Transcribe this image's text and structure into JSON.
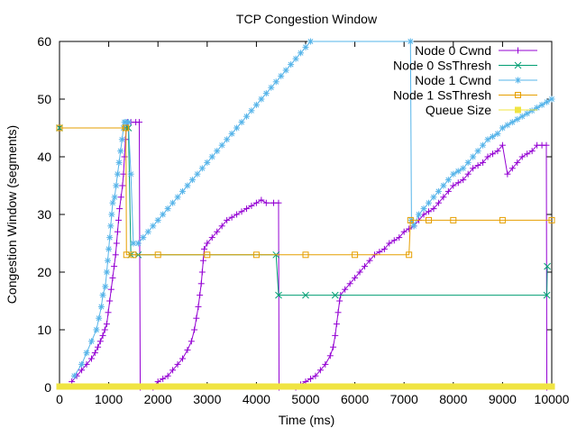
{
  "chart_data": {
    "type": "line",
    "title": "TCP Congestion Window",
    "xlabel": "Time (ms)",
    "ylabel": "Congestion Window (segments)",
    "xlim": [
      0,
      10000
    ],
    "ylim": [
      0,
      60
    ],
    "xticks": [
      0,
      1000,
      2000,
      3000,
      4000,
      5000,
      6000,
      7000,
      8000,
      9000,
      10000
    ],
    "yticks": [
      0,
      10,
      20,
      30,
      40,
      50,
      60
    ],
    "grid": false,
    "legend_position": "top-right",
    "series": [
      {
        "name": "Node 0 Cwnd",
        "color": "#9400d3",
        "marker": "plus",
        "points": [
          [
            250,
            1
          ],
          [
            350,
            2
          ],
          [
            450,
            3
          ],
          [
            550,
            4
          ],
          [
            650,
            5
          ],
          [
            720,
            6
          ],
          [
            780,
            7
          ],
          [
            830,
            8
          ],
          [
            880,
            9
          ],
          [
            920,
            10
          ],
          [
            960,
            11
          ],
          [
            990,
            13
          ],
          [
            1020,
            15
          ],
          [
            1050,
            17
          ],
          [
            1080,
            19
          ],
          [
            1110,
            21
          ],
          [
            1140,
            23
          ],
          [
            1160,
            25
          ],
          [
            1180,
            27
          ],
          [
            1200,
            29
          ],
          [
            1220,
            31
          ],
          [
            1250,
            33
          ],
          [
            1280,
            35
          ],
          [
            1300,
            37
          ],
          [
            1320,
            40
          ],
          [
            1340,
            43
          ],
          [
            1360,
            45
          ],
          [
            1380,
            46
          ],
          [
            1450,
            46
          ],
          [
            1550,
            46
          ],
          [
            1620,
            46
          ],
          [
            1640,
            0
          ],
          [
            1900,
            0
          ],
          [
            2000,
            1
          ],
          [
            2100,
            1.5
          ],
          [
            2200,
            2
          ],
          [
            2300,
            3
          ],
          [
            2400,
            4
          ],
          [
            2500,
            5
          ],
          [
            2600,
            6.5
          ],
          [
            2680,
            8
          ],
          [
            2740,
            10
          ],
          [
            2780,
            12
          ],
          [
            2820,
            14
          ],
          [
            2850,
            16
          ],
          [
            2880,
            18
          ],
          [
            2900,
            20
          ],
          [
            2920,
            22
          ],
          [
            2940,
            24
          ],
          [
            3000,
            25
          ],
          [
            3100,
            26
          ],
          [
            3200,
            27
          ],
          [
            3300,
            28
          ],
          [
            3400,
            29
          ],
          [
            3500,
            29.5
          ],
          [
            3600,
            30
          ],
          [
            3700,
            30.5
          ],
          [
            3800,
            31
          ],
          [
            3900,
            31.5
          ],
          [
            4000,
            32
          ],
          [
            4100,
            32.5
          ],
          [
            4200,
            32
          ],
          [
            4350,
            32
          ],
          [
            4450,
            32
          ],
          [
            4460,
            0
          ],
          [
            4800,
            0
          ],
          [
            4900,
            0.5
          ],
          [
            5000,
            1
          ],
          [
            5100,
            1.5
          ],
          [
            5200,
            2
          ],
          [
            5300,
            3
          ],
          [
            5400,
            4
          ],
          [
            5500,
            5.5
          ],
          [
            5560,
            7
          ],
          [
            5600,
            9
          ],
          [
            5630,
            11
          ],
          [
            5660,
            13
          ],
          [
            5690,
            15
          ],
          [
            5710,
            16
          ],
          [
            5800,
            17
          ],
          [
            5900,
            18
          ],
          [
            6000,
            19
          ],
          [
            6100,
            20
          ],
          [
            6200,
            21
          ],
          [
            6300,
            22
          ],
          [
            6400,
            23
          ],
          [
            6500,
            23.5
          ],
          [
            6600,
            24
          ],
          [
            6700,
            25
          ],
          [
            6800,
            25.5
          ],
          [
            6900,
            26
          ],
          [
            7000,
            27
          ],
          [
            7100,
            27.5
          ],
          [
            7200,
            28
          ],
          [
            7300,
            29
          ],
          [
            7400,
            30
          ],
          [
            7500,
            30.5
          ],
          [
            7600,
            31
          ],
          [
            7700,
            32
          ],
          [
            7800,
            33
          ],
          [
            7900,
            34
          ],
          [
            8000,
            35
          ],
          [
            8100,
            35.5
          ],
          [
            8200,
            36
          ],
          [
            8300,
            37
          ],
          [
            8400,
            38
          ],
          [
            8500,
            38.5
          ],
          [
            8600,
            39
          ],
          [
            8700,
            40
          ],
          [
            8800,
            40.5
          ],
          [
            8900,
            41
          ],
          [
            9000,
            42
          ],
          [
            9100,
            37
          ],
          [
            9200,
            38
          ],
          [
            9300,
            39
          ],
          [
            9400,
            40
          ],
          [
            9500,
            40.5
          ],
          [
            9600,
            41
          ],
          [
            9700,
            42
          ],
          [
            9800,
            42
          ],
          [
            9890,
            42
          ],
          [
            9900,
            0
          ]
        ]
      },
      {
        "name": "Node 0 SsThresh",
        "color": "#009e73",
        "marker": "x",
        "points": [
          [
            0,
            45
          ],
          [
            1350,
            45
          ],
          [
            1400,
            45
          ],
          [
            1450,
            23
          ],
          [
            1600,
            23
          ],
          [
            4400,
            23
          ],
          [
            4450,
            16
          ],
          [
            5000,
            16
          ],
          [
            5600,
            16
          ],
          [
            9900,
            16
          ],
          [
            9910,
            21
          ]
        ]
      },
      {
        "name": "Node 1 Cwnd",
        "color": "#56b4e9",
        "marker": "star",
        "points": [
          [
            300,
            2
          ],
          [
            450,
            4
          ],
          [
            550,
            6
          ],
          [
            650,
            8
          ],
          [
            750,
            10
          ],
          [
            800,
            12
          ],
          [
            850,
            14
          ],
          [
            880,
            16
          ],
          [
            930,
            17.5
          ],
          [
            960,
            20
          ],
          [
            980,
            22
          ],
          [
            1000,
            24
          ],
          [
            1020,
            26
          ],
          [
            1040,
            28
          ],
          [
            1060,
            30
          ],
          [
            1080,
            32
          ],
          [
            1120,
            33
          ],
          [
            1150,
            35
          ],
          [
            1180,
            37
          ],
          [
            1210,
            39
          ],
          [
            1240,
            41
          ],
          [
            1270,
            43
          ],
          [
            1300,
            45
          ],
          [
            1320,
            46
          ],
          [
            1350,
            46
          ],
          [
            1400,
            46
          ],
          [
            1450,
            37
          ],
          [
            1500,
            25
          ],
          [
            1600,
            25
          ],
          [
            1700,
            26
          ],
          [
            1800,
            27
          ],
          [
            1900,
            28
          ],
          [
            2000,
            29
          ],
          [
            2100,
            30
          ],
          [
            2200,
            31
          ],
          [
            2300,
            32
          ],
          [
            2400,
            33
          ],
          [
            2500,
            34
          ],
          [
            2600,
            35
          ],
          [
            2700,
            36
          ],
          [
            2800,
            37
          ],
          [
            2900,
            38
          ],
          [
            3000,
            39
          ],
          [
            3100,
            40
          ],
          [
            3200,
            41
          ],
          [
            3300,
            42
          ],
          [
            3400,
            43
          ],
          [
            3500,
            44
          ],
          [
            3600,
            45
          ],
          [
            3700,
            46
          ],
          [
            3800,
            47
          ],
          [
            3900,
            48
          ],
          [
            4000,
            49
          ],
          [
            4100,
            50
          ],
          [
            4200,
            51
          ],
          [
            4300,
            52
          ],
          [
            4400,
            53
          ],
          [
            4500,
            54
          ],
          [
            4600,
            55
          ],
          [
            4700,
            56
          ],
          [
            4800,
            57
          ],
          [
            4900,
            58
          ],
          [
            5000,
            59
          ],
          [
            5100,
            60
          ],
          [
            7130,
            60
          ],
          [
            7150,
            29
          ],
          [
            7200,
            28
          ],
          [
            7300,
            30
          ],
          [
            7400,
            31
          ],
          [
            7500,
            32
          ],
          [
            7600,
            33
          ],
          [
            7700,
            34
          ],
          [
            7800,
            35
          ],
          [
            7900,
            36
          ],
          [
            8000,
            37
          ],
          [
            8100,
            37.5
          ],
          [
            8200,
            38
          ],
          [
            8300,
            39
          ],
          [
            8400,
            40
          ],
          [
            8500,
            41
          ],
          [
            8600,
            42
          ],
          [
            8700,
            43
          ],
          [
            8800,
            43.5
          ],
          [
            8900,
            44
          ],
          [
            9000,
            45
          ],
          [
            9100,
            45.5
          ],
          [
            9200,
            46
          ],
          [
            9300,
            46.5
          ],
          [
            9400,
            47
          ],
          [
            9500,
            47.5
          ],
          [
            9600,
            48
          ],
          [
            9700,
            48.5
          ],
          [
            9800,
            49
          ],
          [
            9900,
            49.5
          ],
          [
            10000,
            50
          ]
        ]
      },
      {
        "name": "Node 1 SsThresh",
        "color": "#e69f00",
        "marker": "square",
        "points": [
          [
            0,
            45
          ],
          [
            1340,
            45
          ],
          [
            1350,
            45
          ],
          [
            1360,
            23
          ],
          [
            1500,
            23
          ],
          [
            2000,
            23
          ],
          [
            3000,
            23
          ],
          [
            4000,
            23
          ],
          [
            5000,
            23
          ],
          [
            6000,
            23
          ],
          [
            7100,
            23
          ],
          [
            7130,
            29
          ],
          [
            7500,
            29
          ],
          [
            8000,
            29
          ],
          [
            9000,
            29
          ],
          [
            10000,
            29
          ]
        ]
      },
      {
        "name": "Queue Size",
        "color": "#f0e442",
        "marker": "filled-square",
        "points": [
          [
            0,
            0
          ],
          [
            10000,
            0
          ]
        ]
      }
    ]
  }
}
